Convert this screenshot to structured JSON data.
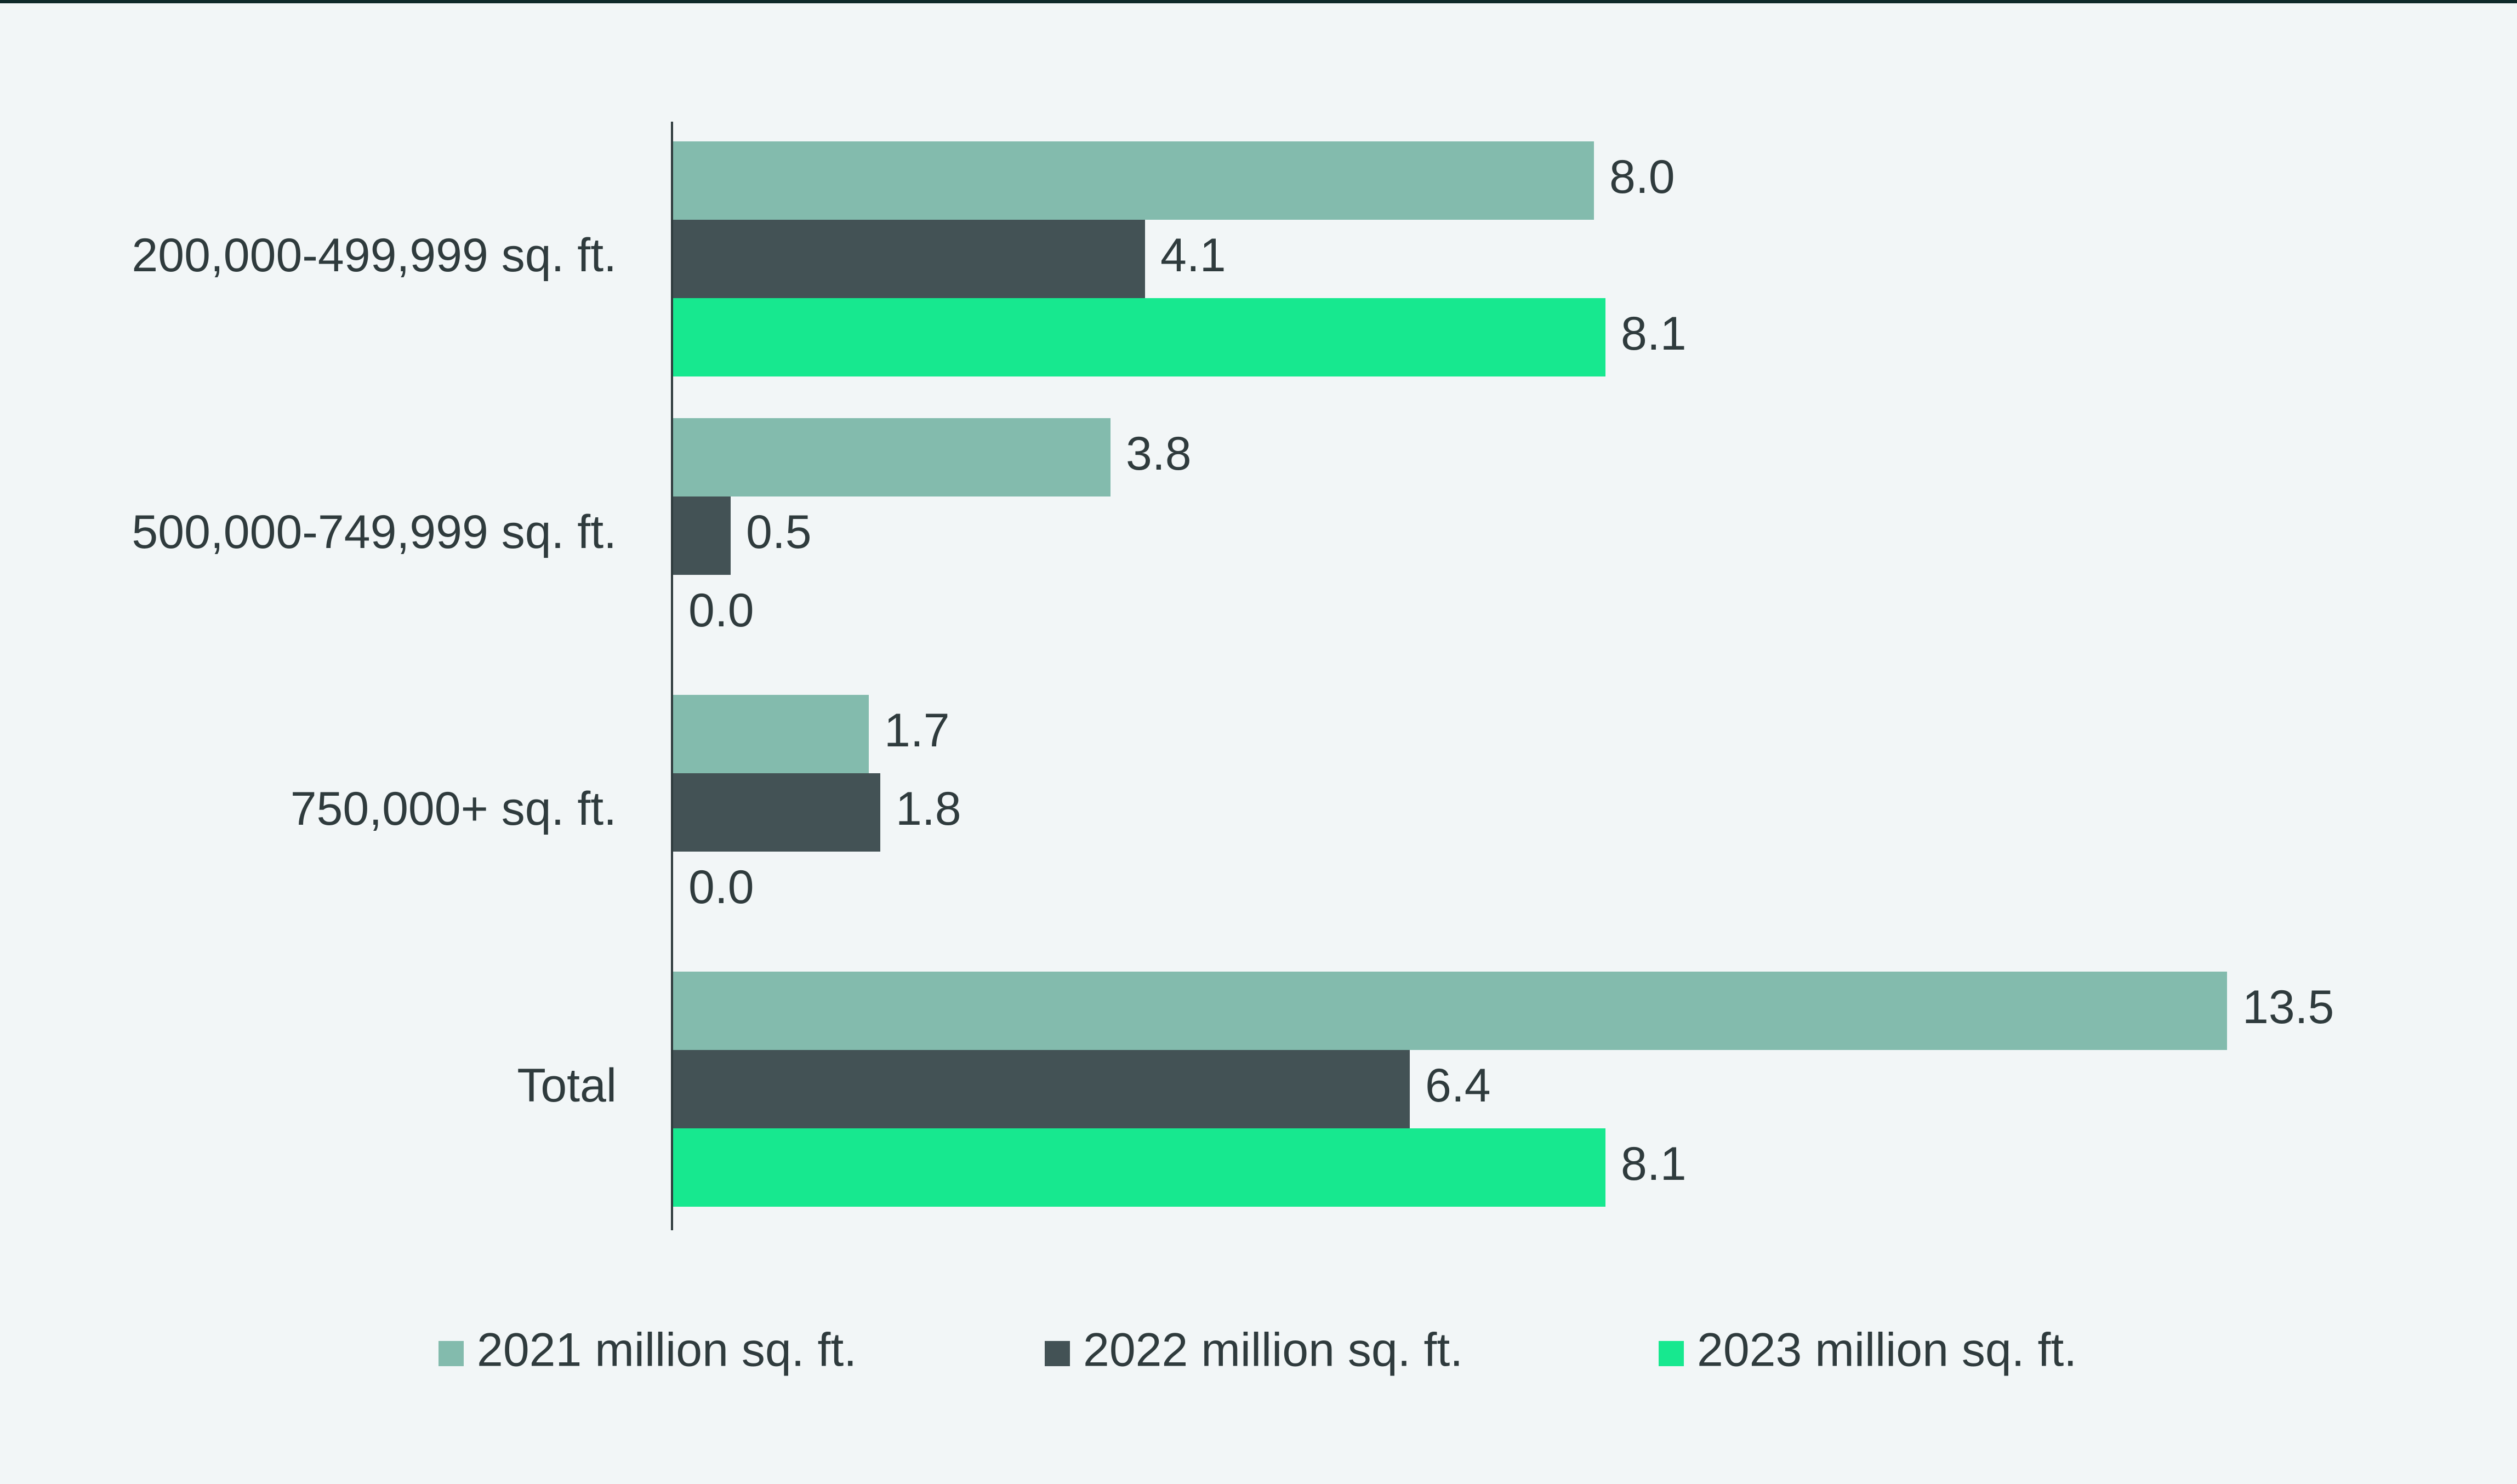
{
  "colors": {
    "background": "#f2f6f7",
    "text": "#2f3b3d",
    "axis": "#2f3b3d",
    "series_2021": "#83bbad",
    "series_2022": "#435255",
    "series_2023": "#17e88f"
  },
  "chart_data": {
    "type": "bar",
    "orientation": "horizontal",
    "title": "",
    "xlabel": "",
    "ylabel": "",
    "xlim": [
      0,
      13.5
    ],
    "grid": false,
    "legend_position": "bottom",
    "categories": [
      "200,000-499,999 sq. ft.",
      "500,000-749,999 sq. ft.",
      "750,000+ sq. ft.",
      "Total"
    ],
    "series": [
      {
        "name": "2021 million sq. ft.",
        "values": [
          8.0,
          3.8,
          1.7,
          13.5
        ],
        "labels": [
          "8.0",
          "3.8",
          "1.7",
          "13.5"
        ],
        "color": "#83bbad"
      },
      {
        "name": "2022 million sq. ft.",
        "values": [
          4.1,
          0.5,
          1.8,
          6.4
        ],
        "labels": [
          "4.1",
          "0.5",
          "1.8",
          "6.4"
        ],
        "color": "#435255"
      },
      {
        "name": "2023 million sq. ft.",
        "values": [
          8.1,
          0.0,
          0.0,
          8.1
        ],
        "labels": [
          "8.1",
          "0.0",
          "0.0",
          "8.1"
        ],
        "color": "#17e88f"
      }
    ]
  }
}
